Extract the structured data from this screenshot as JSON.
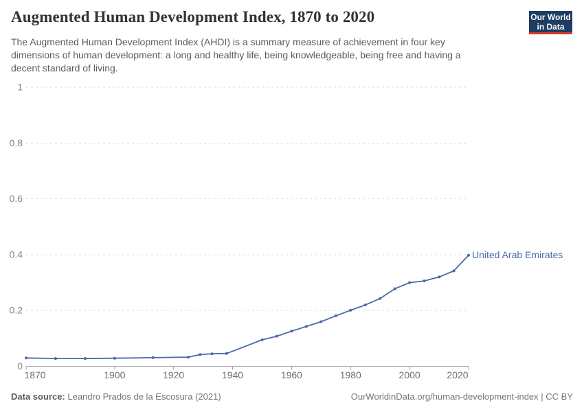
{
  "header": {
    "title": "Augmented Human Development Index, 1870 to 2020",
    "subtitle": "The Augmented Human Development Index (AHDI) is a summary measure of achievement in four key dimensions of human development: a long and healthy life, being knowledgeable, being free and having a decent standard of living.",
    "logo": {
      "line1": "Our World",
      "line2": "in Data",
      "bg_color": "#1d3d63",
      "accent_color": "#dc3a2b"
    }
  },
  "chart_data": {
    "type": "line",
    "title": "Augmented Human Development Index, 1870 to 2020",
    "xlabel": "",
    "ylabel": "",
    "xlim": [
      1870,
      2020
    ],
    "ylim": [
      0,
      1
    ],
    "x_ticks": [
      1870,
      1900,
      1920,
      1940,
      1960,
      1980,
      2000,
      2020
    ],
    "y_ticks": [
      0,
      0.2,
      0.4,
      0.6,
      0.8,
      1
    ],
    "grid": "horizontal-dashed",
    "legend_position": "end-of-line-label",
    "series": [
      {
        "name": "United Arab Emirates",
        "color": "#4b69a5",
        "points": [
          [
            1870,
            0.03
          ],
          [
            1880,
            0.028
          ],
          [
            1890,
            0.028
          ],
          [
            1900,
            0.029
          ],
          [
            1913,
            0.031
          ],
          [
            1925,
            0.033
          ],
          [
            1929,
            0.042
          ],
          [
            1933,
            0.045
          ],
          [
            1938,
            0.046
          ],
          [
            1950,
            0.095
          ],
          [
            1955,
            0.108
          ],
          [
            1960,
            0.126
          ],
          [
            1965,
            0.143
          ],
          [
            1970,
            0.16
          ],
          [
            1975,
            0.181
          ],
          [
            1980,
            0.201
          ],
          [
            1985,
            0.22
          ],
          [
            1990,
            0.243
          ],
          [
            1995,
            0.278
          ],
          [
            2000,
            0.3
          ],
          [
            2005,
            0.306
          ],
          [
            2010,
            0.32
          ],
          [
            2015,
            0.342
          ],
          [
            2020,
            0.398
          ]
        ]
      }
    ],
    "style": {
      "grid_color": "#dcdcdc",
      "axis_color": "#a8a8a8",
      "tick_label_color": "#6e6e6e",
      "y_label_color": "#848484"
    }
  },
  "footer": {
    "source_label": "Data source:",
    "source_value": " Leandro Prados de la Escosura (2021)",
    "credit": "OurWorldinData.org/human-development-index | CC BY"
  }
}
